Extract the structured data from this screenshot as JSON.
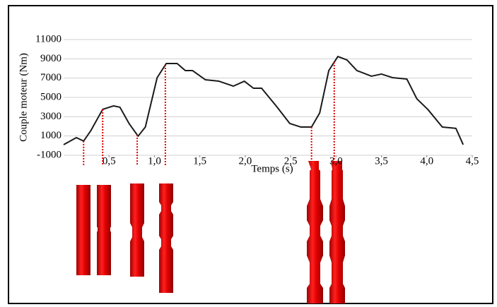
{
  "chart_data": {
    "type": "line",
    "x_label": "Temps (s)",
    "y_label": "Couple moteur (Nm)",
    "x": [
      0,
      0.14,
      0.22,
      0.3,
      0.43,
      0.55,
      0.62,
      0.72,
      0.82,
      0.9,
      1.03,
      1.13,
      1.25,
      1.34,
      1.42,
      1.56,
      1.71,
      1.87,
      1.99,
      2.09,
      2.18,
      2.34,
      2.49,
      2.61,
      2.73,
      2.82,
      2.92,
      3.02,
      3.12,
      3.23,
      3.39,
      3.5,
      3.62,
      3.78,
      3.89,
      4.01,
      4.17,
      4.32,
      4.4
    ],
    "series": [
      {
        "color": "#1a1a1a",
        "values": [
          100,
          830,
          470,
          1560,
          3760,
          4120,
          3980,
          2300,
          980,
          1930,
          7050,
          8510,
          8510,
          7780,
          7780,
          6830,
          6680,
          6170,
          6680,
          5950,
          5950,
          4120,
          2300,
          1930,
          1930,
          3390,
          7780,
          9240,
          8880,
          7780,
          7200,
          7420,
          7050,
          6900,
          4850,
          3760,
          1930,
          1790,
          100
        ]
      }
    ],
    "markers": [
      0.22,
      0.43,
      0.81,
      1.12,
      2.73,
      2.98
    ],
    "marker_color": "#e00000",
    "xlim": [
      0,
      4.5
    ],
    "xticks": [
      {
        "value": 0.5,
        "label": "0,5"
      },
      {
        "value": 1.0,
        "label": "1,0"
      },
      {
        "value": 1.5,
        "label": "1,5"
      },
      {
        "value": 2.0,
        "label": "2,0"
      },
      {
        "value": 2.5,
        "label": "2,5"
      },
      {
        "value": 3.0,
        "label": "3,0"
      },
      {
        "value": 3.5,
        "label": "3,5"
      },
      {
        "value": 4.0,
        "label": "4,0"
      },
      {
        "value": 4.5,
        "label": "4,5"
      }
    ],
    "ylim": [
      -1000,
      11000
    ],
    "yticks": [
      -1000,
      1000,
      3000,
      5000,
      7000,
      9000,
      11000
    ],
    "grid": true
  }
}
